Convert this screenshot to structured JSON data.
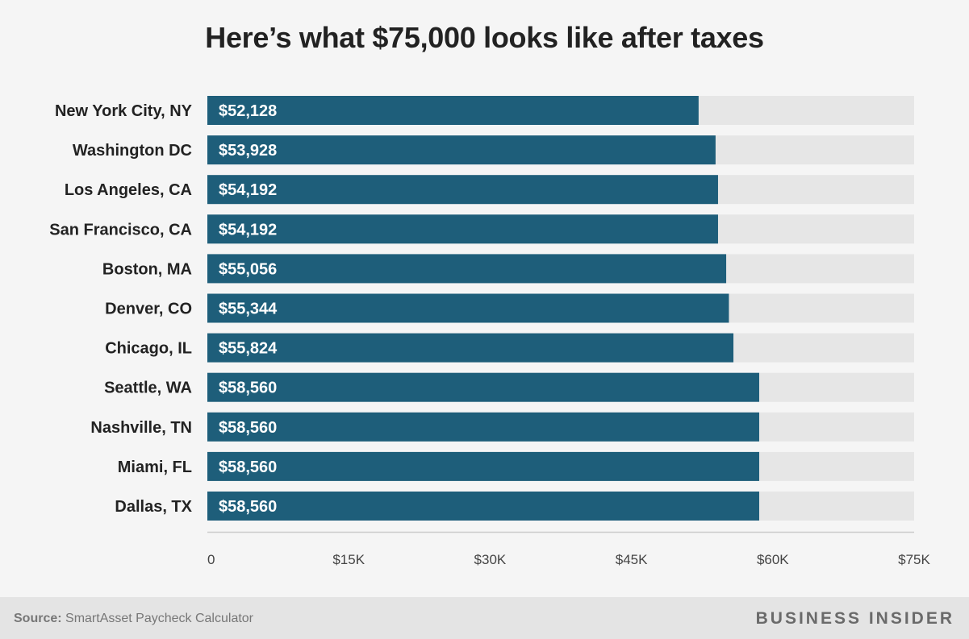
{
  "title": "Here’s what $75,000 looks like after taxes",
  "source_label": "Source:",
  "source_text": "SmartAsset Paycheck Calculator",
  "brand": "BUSINESS INSIDER",
  "colors": {
    "bar": "#1e5e7a",
    "track": "#e6e6e6",
    "axis": "#cccccc",
    "label": "#222222",
    "tick": "#444444"
  },
  "chart_data": {
    "type": "bar",
    "orientation": "horizontal",
    "categories": [
      "New York City, NY",
      "Washington DC",
      "Los Angeles, CA",
      "San Francisco, CA",
      "Boston, MA",
      "Denver, CO",
      "Chicago, IL",
      "Seattle, WA",
      "Nashville, TN",
      "Miami, FL",
      "Dallas, TX"
    ],
    "values": [
      52128,
      53928,
      54192,
      54192,
      55056,
      55344,
      55824,
      58560,
      58560,
      58560,
      58560
    ],
    "value_labels": [
      "$52,128",
      "$53,928",
      "$54,192",
      "$54,192",
      "$55,056",
      "$55,344",
      "$55,824",
      "$58,560",
      "$58,560",
      "$58,560",
      "$58,560"
    ],
    "xlim": [
      0,
      75000
    ],
    "ticks": [
      0,
      15000,
      30000,
      45000,
      60000,
      75000
    ],
    "tick_labels": [
      "0",
      "$15K",
      "$30K",
      "$45K",
      "$60K",
      "$75K"
    ],
    "track_max": 75000,
    "title": "Here’s what $75,000 looks like after taxes",
    "xlabel": "",
    "ylabel": "",
    "grid": false
  }
}
